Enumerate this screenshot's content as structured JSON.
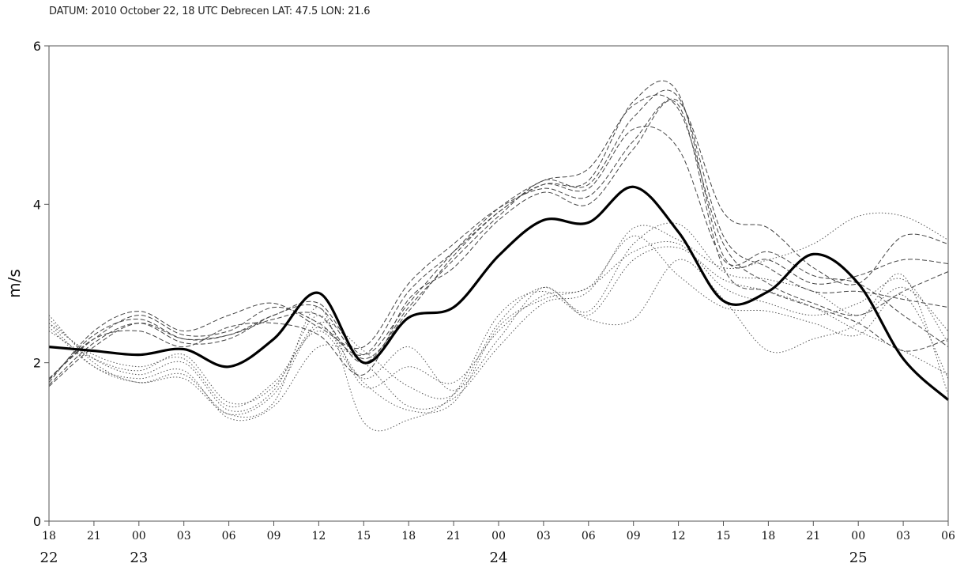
{
  "header": {
    "text": "DATUM: 2010 October 22, 18 UTC Debrecen LAT: 47.5 LON: 21.6"
  },
  "chart_data": {
    "type": "line",
    "title": "",
    "xlabel": "",
    "ylabel": "m/s",
    "ylim": [
      0,
      6
    ],
    "yticks": [
      "0",
      "2",
      "4",
      "6"
    ],
    "x": [
      0,
      3,
      6,
      9,
      12,
      15,
      18,
      21,
      24,
      27,
      30,
      33,
      36,
      39,
      42,
      45,
      48,
      51,
      54,
      57,
      60
    ],
    "hour_ticks": [
      "18",
      "21",
      "00",
      "03",
      "06",
      "09",
      "12",
      "15",
      "18",
      "21",
      "00",
      "03",
      "06",
      "09",
      "12",
      "15",
      "18",
      "21",
      "00",
      "03",
      "06"
    ],
    "day_ticks": [
      {
        "x": 0,
        "label": "22"
      },
      {
        "x": 6,
        "label": "23"
      },
      {
        "x": 30,
        "label": "24"
      },
      {
        "x": 54,
        "label": "25"
      }
    ],
    "grid": false,
    "legend": "none",
    "series": [
      {
        "style": "solid-bold",
        "color": "#000000",
        "values": [
          2.2,
          2.15,
          2.1,
          2.17,
          1.95,
          2.3,
          2.88,
          2.0,
          2.57,
          2.7,
          3.35,
          3.8,
          3.77,
          4.22,
          3.65,
          2.78,
          2.9,
          3.37,
          3.0,
          2.05,
          1.53
        ]
      },
      {
        "style": "dashed",
        "color": "#444444",
        "values": [
          1.8,
          2.3,
          2.6,
          2.35,
          2.4,
          2.7,
          2.5,
          2.1,
          2.9,
          3.4,
          3.9,
          4.25,
          4.2,
          4.95,
          4.7,
          3.3,
          3.4,
          3.1,
          3.0,
          2.6,
          2.2
        ]
      },
      {
        "style": "dashed",
        "color": "#444444",
        "values": [
          1.7,
          2.2,
          2.5,
          2.3,
          2.35,
          2.55,
          2.6,
          2.0,
          2.7,
          3.3,
          3.85,
          4.3,
          4.25,
          5.1,
          5.35,
          3.6,
          3.2,
          2.9,
          2.9,
          2.8,
          2.7
        ]
      },
      {
        "style": "dashed",
        "color": "#444444",
        "values": [
          1.75,
          2.4,
          2.65,
          2.4,
          2.6,
          2.75,
          2.45,
          2.2,
          3.0,
          3.5,
          3.95,
          4.2,
          4.1,
          4.8,
          5.3,
          3.9,
          3.7,
          3.2,
          3.0,
          3.6,
          3.5
        ]
      },
      {
        "style": "dashed",
        "color": "#444444",
        "values": [
          1.8,
          2.3,
          2.4,
          2.2,
          2.45,
          2.5,
          2.35,
          1.85,
          2.8,
          3.2,
          3.8,
          4.15,
          4.0,
          4.7,
          5.25,
          3.2,
          2.9,
          2.7,
          2.5,
          2.15,
          2.3
        ]
      },
      {
        "style": "dashed",
        "color": "#444444",
        "values": [
          1.72,
          2.25,
          2.5,
          2.25,
          2.3,
          2.6,
          2.7,
          2.05,
          2.65,
          3.35,
          3.9,
          4.25,
          4.3,
          5.3,
          5.4,
          3.35,
          3.3,
          3.0,
          3.1,
          3.3,
          3.25
        ]
      },
      {
        "style": "dashed",
        "color": "#444444",
        "values": [
          1.78,
          2.35,
          2.55,
          2.3,
          2.35,
          2.6,
          2.75,
          2.1,
          2.75,
          3.4,
          3.95,
          4.3,
          4.45,
          5.25,
          5.2,
          3.5,
          3.0,
          2.75,
          2.6,
          2.9,
          3.15
        ]
      },
      {
        "style": "dotted",
        "color": "#555555",
        "values": [
          2.6,
          2.0,
          1.75,
          1.85,
          1.35,
          1.5,
          2.7,
          1.25,
          1.28,
          1.6,
          2.6,
          2.9,
          2.55,
          2.55,
          3.3,
          2.8,
          2.15,
          2.3,
          2.5,
          3.1,
          1.6
        ]
      },
      {
        "style": "dotted",
        "color": "#555555",
        "values": [
          2.55,
          2.05,
          1.85,
          2.0,
          1.4,
          1.65,
          2.6,
          1.7,
          1.95,
          1.75,
          2.4,
          2.85,
          2.95,
          3.6,
          3.1,
          2.7,
          2.65,
          2.5,
          2.35,
          2.85,
          1.8
        ]
      },
      {
        "style": "dotted",
        "color": "#555555",
        "values": [
          2.5,
          2.1,
          1.95,
          2.05,
          1.45,
          1.75,
          2.4,
          1.8,
          2.2,
          1.65,
          2.3,
          2.95,
          2.6,
          3.3,
          3.45,
          3.05,
          2.9,
          2.7,
          2.4,
          2.15,
          1.85
        ]
      },
      {
        "style": "dotted",
        "color": "#555555",
        "values": [
          2.45,
          1.95,
          1.8,
          1.9,
          1.3,
          1.45,
          2.2,
          2.0,
          1.45,
          1.55,
          2.2,
          2.75,
          2.9,
          3.7,
          3.55,
          3.2,
          3.3,
          3.5,
          3.85,
          3.85,
          3.55
        ]
      },
      {
        "style": "dotted",
        "color": "#555555",
        "values": [
          2.4,
          2.05,
          1.9,
          2.1,
          1.5,
          1.7,
          2.5,
          2.15,
          1.7,
          1.6,
          2.5,
          2.95,
          2.65,
          3.5,
          3.75,
          3.15,
          3.05,
          2.9,
          2.6,
          2.95,
          2.4
        ]
      },
      {
        "style": "dotted",
        "color": "#555555",
        "values": [
          2.5,
          1.95,
          1.75,
          1.8,
          1.35,
          1.6,
          2.45,
          1.75,
          1.4,
          1.5,
          2.45,
          2.8,
          2.95,
          3.4,
          3.5,
          2.95,
          2.75,
          2.6,
          2.75,
          3.05,
          2.25
        ]
      }
    ]
  }
}
